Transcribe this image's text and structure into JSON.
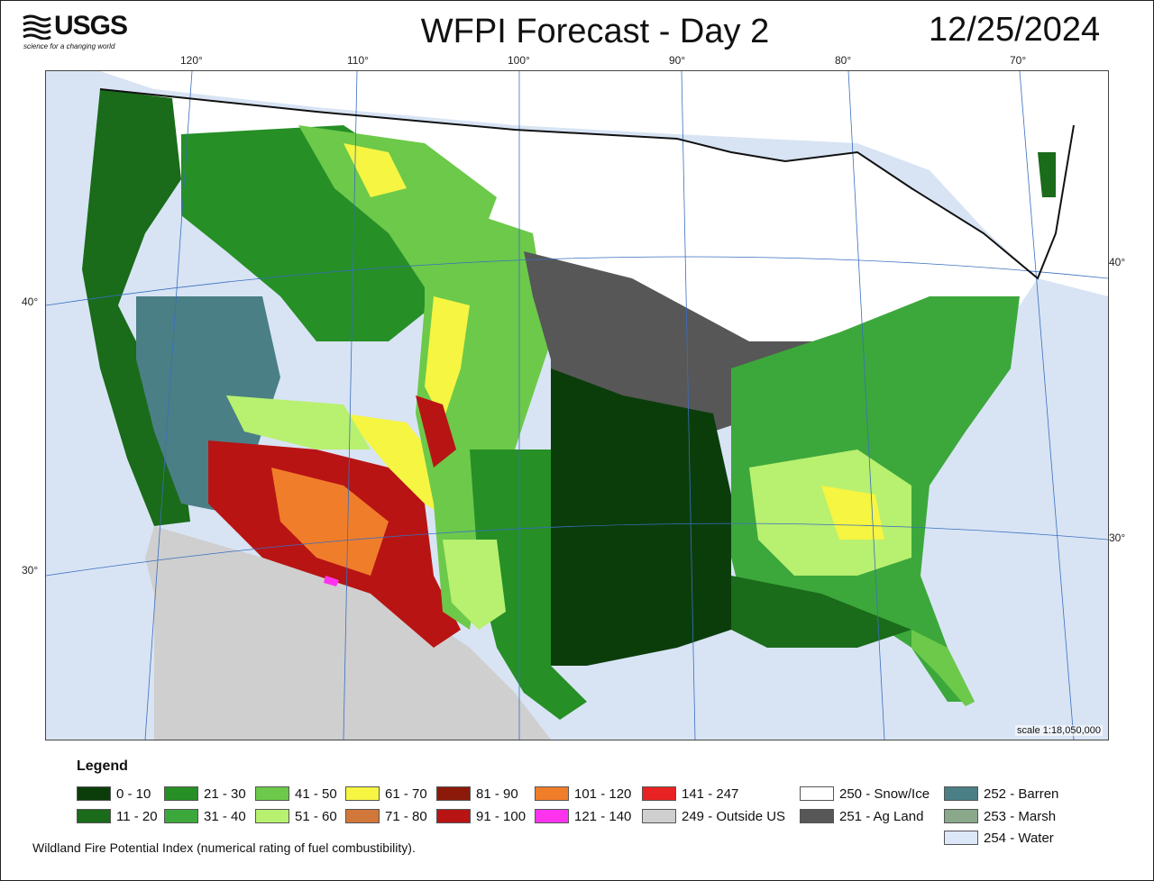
{
  "header": {
    "logo_text": "USGS",
    "logo_tagline": "science for a changing world",
    "title": "WFPI Forecast - Day 2",
    "date": "12/25/2024"
  },
  "map": {
    "longitude_labels": [
      "120°",
      "110°",
      "100°",
      "90°",
      "80°",
      "70°"
    ],
    "latitude_labels_left": [
      "40°",
      "30°"
    ],
    "latitude_labels_right": [
      "40°",
      "30°"
    ],
    "scale": "scale 1:18,050,000"
  },
  "legend": {
    "title": "Legend",
    "items": [
      {
        "label": "0 - 10",
        "color": "#0b3d0b"
      },
      {
        "label": "11 - 20",
        "color": "#1a6b1a"
      },
      {
        "label": "21 - 30",
        "color": "#268f26"
      },
      {
        "label": "31 - 40",
        "color": "#3ca83c"
      },
      {
        "label": "41 - 50",
        "color": "#6cc94a"
      },
      {
        "label": "51 - 60",
        "color": "#b8f070"
      },
      {
        "label": "61 - 70",
        "color": "#f5f542"
      },
      {
        "label": "71 - 80",
        "color": "#d2773a"
      },
      {
        "label": "81 - 90",
        "color": "#8b1a0a"
      },
      {
        "label": "91 - 100",
        "color": "#b81414"
      },
      {
        "label": "101 - 120",
        "color": "#f07d2a"
      },
      {
        "label": "121 - 140",
        "color": "#ff33ee"
      },
      {
        "label": "141 - 247",
        "color": "#e82222"
      },
      {
        "label": "249 - Outside US",
        "color": "#cfcfcf"
      },
      {
        "label": "250 - Snow/Ice",
        "color": "#ffffff"
      },
      {
        "label": "251 - Ag Land",
        "color": "#575757"
      },
      {
        "label": "252 - Barren",
        "color": "#4a7f85"
      },
      {
        "label": "253 - Marsh",
        "color": "#8aa88a"
      },
      {
        "label": "254 - Water",
        "color": "#dce8f8"
      }
    ]
  },
  "caption": "Wildland Fire Potential Index (numerical rating of fuel combustibility)."
}
